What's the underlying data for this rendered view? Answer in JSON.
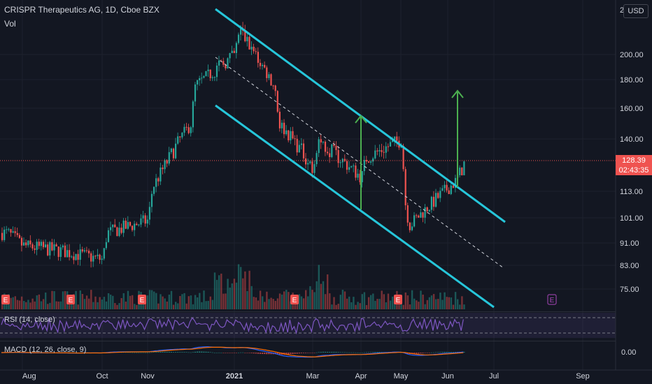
{
  "header": {
    "title": "CRISPR Therapeutics AG, 1D, Cboe BZX",
    "volume_label": "Vol",
    "currency": "USD"
  },
  "price_axis": {
    "top_partial": "2"
  },
  "rsi_label": "RSI (14, close)",
  "macd_label": "MACD (12, 26, close, 9)",
  "macd_axis_label": "0.00",
  "last_price": {
    "value": "128.39",
    "countdown": "02:43:35"
  },
  "earnings_marker": "E",
  "colors": {
    "background": "#131722",
    "up": "#26a69a",
    "down": "#ef5350",
    "channel": "#26c6da",
    "arrow": "#4caf50",
    "rsi": "#7e57c2",
    "macd": "#2962ff",
    "signal": "#ff6d00"
  },
  "chart_data": {
    "type": "candlestick",
    "y_axis_labels": [
      200.0,
      180.0,
      160.0,
      140.0,
      113.0,
      101.0,
      91.0,
      83.0,
      75.0
    ],
    "x_axis_labels": [
      "Aug",
      "Oct",
      "Nov",
      "2021",
      "Mar",
      "Apr",
      "May",
      "Jun",
      "Jul",
      "Sep"
    ],
    "last_close": 128.39,
    "earnings_months": [
      "Aug",
      "Oct",
      "Nov",
      "2021",
      "Mar",
      "May",
      "Aug"
    ],
    "channel": {
      "upper_line": [
        [
          "Dec",
          230
        ],
        [
          "Jun",
          101
        ]
      ],
      "lower_line": [
        [
          "Dec",
          160
        ],
        [
          "Jun",
          62
        ]
      ]
    },
    "price_path_approx": [
      [
        "Jul",
        95
      ],
      [
        "Aug",
        90
      ],
      [
        "Sep",
        88
      ],
      [
        "Oct",
        85
      ],
      [
        "Oct",
        95
      ],
      [
        "Nov",
        100
      ],
      [
        "Nov",
        115
      ],
      [
        "Dec",
        150
      ],
      [
        "Dec",
        175
      ],
      [
        "Jan",
        200
      ],
      [
        "Jan",
        220
      ],
      [
        "Feb",
        175
      ],
      [
        "Feb",
        150
      ],
      [
        "Mar",
        125
      ],
      [
        "Mar",
        140
      ],
      [
        "Apr",
        120
      ],
      [
        "Apr",
        130
      ],
      [
        "May",
        140
      ],
      [
        "May",
        105
      ],
      [
        "May",
        98
      ],
      [
        "Jun",
        118
      ],
      [
        "Jun",
        128.39
      ]
    ]
  }
}
